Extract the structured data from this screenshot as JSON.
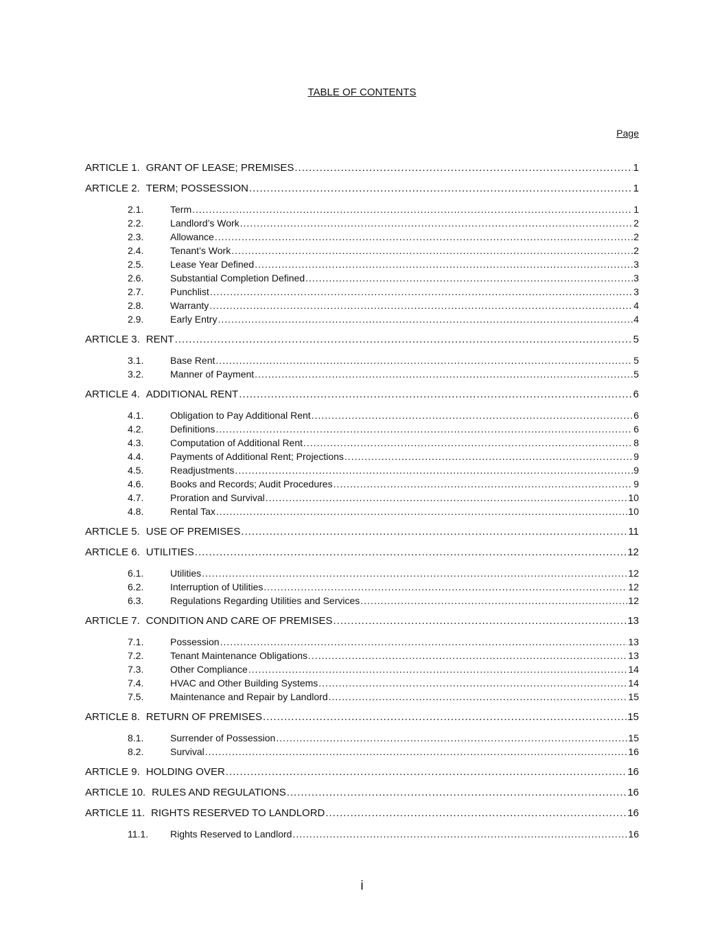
{
  "title": "TABLE OF CONTENTS",
  "page_header": "Page",
  "folio": "i",
  "articles": [
    {
      "number": "ARTICLE 1.",
      "title": "GRANT OF LEASE; PREMISES",
      "page": "1",
      "sections": []
    },
    {
      "number": "ARTICLE 2.",
      "title": "TERM; POSSESSION",
      "page": "1",
      "sections": [
        {
          "number": "2.1.",
          "title": "Term",
          "page": "1"
        },
        {
          "number": "2.2.",
          "title": "Landlord’s Work",
          "page": "2"
        },
        {
          "number": "2.3.",
          "title": "Allowance",
          "page": "2"
        },
        {
          "number": "2.4.",
          "title": "Tenant’s Work",
          "page": "2"
        },
        {
          "number": "2.5.",
          "title": "Lease Year Defined",
          "page": "3"
        },
        {
          "number": "2.6.",
          "title": "Substantial Completion Defined",
          "page": "3"
        },
        {
          "number": "2.7.",
          "title": "Punchlist",
          "page": "3"
        },
        {
          "number": "2.8.",
          "title": "Warranty",
          "page": "4"
        },
        {
          "number": "2.9.",
          "title": "Early Entry",
          "page": "4"
        }
      ]
    },
    {
      "number": "ARTICLE 3.",
      "title": "RENT",
      "page": "5",
      "sections": [
        {
          "number": "3.1.",
          "title": "Base Rent",
          "page": "5"
        },
        {
          "number": "3.2.",
          "title": "Manner of Payment",
          "page": "5"
        }
      ]
    },
    {
      "number": "ARTICLE 4.",
      "title": "ADDITIONAL RENT",
      "page": "6",
      "sections": [
        {
          "number": "4.1.",
          "title": "Obligation to Pay Additional Rent",
          "page": "6"
        },
        {
          "number": "4.2.",
          "title": "Definitions",
          "page": "6"
        },
        {
          "number": "4.3.",
          "title": "Computation of Additional Rent",
          "page": "8"
        },
        {
          "number": "4.4.",
          "title": "Payments of Additional Rent; Projections",
          "page": "9"
        },
        {
          "number": "4.5.",
          "title": "Readjustments",
          "page": "9"
        },
        {
          "number": "4.6.",
          "title": "Books and Records; Audit Procedures",
          "page": "9"
        },
        {
          "number": "4.7.",
          "title": "Proration and Survival",
          "page": "10"
        },
        {
          "number": "4.8.",
          "title": "Rental Tax",
          "page": "10"
        }
      ]
    },
    {
      "number": "ARTICLE 5.",
      "title": "USE OF PREMISES",
      "page": "11",
      "sections": []
    },
    {
      "number": "ARTICLE 6.",
      "title": "UTILITIES",
      "page": "12",
      "sections": [
        {
          "number": "6.1.",
          "title": "Utilities",
          "page": "12"
        },
        {
          "number": "6.2.",
          "title": "Interruption of Utilities",
          "page": "12"
        },
        {
          "number": "6.3.",
          "title": "Regulations Regarding Utilities and Services",
          "page": "12"
        }
      ]
    },
    {
      "number": "ARTICLE 7.",
      "title": "CONDITION AND CARE OF PREMISES",
      "page": "13",
      "sections": [
        {
          "number": "7.1.",
          "title": "Possession",
          "page": "13"
        },
        {
          "number": "7.2.",
          "title": "Tenant Maintenance Obligations",
          "page": "13"
        },
        {
          "number": "7.3.",
          "title": "Other Compliance",
          "page": "14"
        },
        {
          "number": "7.4.",
          "title": "HVAC and Other Building Systems",
          "page": "14"
        },
        {
          "number": "7.5.",
          "title": "Maintenance and Repair by Landlord",
          "page": "15"
        }
      ]
    },
    {
      "number": "ARTICLE 8.",
      "title": "RETURN OF PREMISES",
      "page": "15",
      "sections": [
        {
          "number": "8.1.",
          "title": "Surrender of Possession",
          "page": "15"
        },
        {
          "number": "8.2.",
          "title": "Survival",
          "page": "16"
        }
      ]
    },
    {
      "number": "ARTICLE 9.",
      "title": "HOLDING OVER",
      "page": "16",
      "sections": []
    },
    {
      "number": "ARTICLE 10.",
      "title": "RULES AND REGULATIONS",
      "page": "16",
      "sections": []
    },
    {
      "number": "ARTICLE 11.",
      "title": "RIGHTS RESERVED TO LANDLORD",
      "page": "16",
      "sections": [
        {
          "number": "11.1.",
          "title": "Rights Reserved to Landlord",
          "page": "16"
        }
      ]
    }
  ]
}
